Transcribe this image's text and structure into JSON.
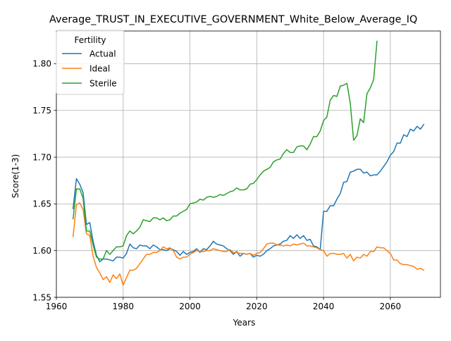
{
  "chart_data": {
    "type": "line",
    "title": "Average_TRUST_IN_EXECUTIVE_GOVERNMENT_White_Below_Average_IQ",
    "xlabel": "Years",
    "ylabel": "Score(1-3)",
    "xlim": [
      1960,
      2075
    ],
    "ylim": [
      1.55,
      1.835
    ],
    "xticks": [
      1960,
      1980,
      2000,
      2020,
      2040,
      2060
    ],
    "yticks": [
      1.55,
      1.6,
      1.65,
      1.7,
      1.75,
      1.8
    ],
    "xtick_labels": [
      "1960",
      "1980",
      "2000",
      "2020",
      "2040",
      "2060"
    ],
    "ytick_labels": [
      "1.55",
      "1.60",
      "1.65",
      "1.70",
      "1.75",
      "1.80"
    ],
    "grid": true,
    "legend": {
      "title": "Fertility",
      "placement": "top-left"
    },
    "series": [
      {
        "name": "Actual",
        "color": "#1f77b4",
        "points": [
          [
            1965,
            1.645
          ],
          [
            1966,
            1.677
          ],
          [
            1967,
            1.671
          ],
          [
            1968,
            1.662
          ],
          [
            1969,
            1.628
          ],
          [
            1970,
            1.63
          ],
          [
            1971,
            1.61
          ],
          [
            1972,
            1.595
          ],
          [
            1973,
            1.588
          ],
          [
            1974,
            1.591
          ],
          [
            1975,
            1.591
          ],
          [
            1976,
            1.59
          ],
          [
            1977,
            1.589
          ],
          [
            1978,
            1.593
          ],
          [
            1979,
            1.593
          ],
          [
            1980,
            1.592
          ],
          [
            1981,
            1.597
          ],
          [
            1982,
            1.607
          ],
          [
            1983,
            1.603
          ],
          [
            1984,
            1.602
          ],
          [
            1985,
            1.606
          ],
          [
            1986,
            1.605
          ],
          [
            1987,
            1.605
          ],
          [
            1988,
            1.602
          ],
          [
            1989,
            1.606
          ],
          [
            1990,
            1.604
          ],
          [
            1991,
            1.601
          ],
          [
            1992,
            1.601
          ],
          [
            1993,
            1.6
          ],
          [
            1994,
            1.602
          ],
          [
            1995,
            1.601
          ],
          [
            1996,
            1.599
          ],
          [
            1997,
            1.595
          ],
          [
            1998,
            1.599
          ],
          [
            1999,
            1.596
          ],
          [
            2000,
            1.598
          ],
          [
            2001,
            1.599
          ],
          [
            2002,
            1.602
          ],
          [
            2003,
            1.598
          ],
          [
            2004,
            1.602
          ],
          [
            2005,
            1.601
          ],
          [
            2006,
            1.605
          ],
          [
            2007,
            1.61
          ],
          [
            2008,
            1.607
          ],
          [
            2009,
            1.606
          ],
          [
            2010,
            1.605
          ],
          [
            2011,
            1.602
          ],
          [
            2012,
            1.6
          ],
          [
            2013,
            1.596
          ],
          [
            2014,
            1.599
          ],
          [
            2015,
            1.594
          ],
          [
            2016,
            1.597
          ],
          [
            2017,
            1.596
          ],
          [
            2018,
            1.597
          ],
          [
            2019,
            1.593
          ],
          [
            2020,
            1.595
          ],
          [
            2021,
            1.594
          ],
          [
            2022,
            1.596
          ],
          [
            2023,
            1.6
          ],
          [
            2024,
            1.602
          ],
          [
            2025,
            1.605
          ],
          [
            2026,
            1.606
          ],
          [
            2027,
            1.607
          ],
          [
            2028,
            1.61
          ],
          [
            2029,
            1.611
          ],
          [
            2030,
            1.616
          ],
          [
            2031,
            1.613
          ],
          [
            2032,
            1.617
          ],
          [
            2033,
            1.613
          ],
          [
            2034,
            1.616
          ],
          [
            2035,
            1.611
          ],
          [
            2036,
            1.612
          ],
          [
            2037,
            1.605
          ],
          [
            2038,
            1.604
          ],
          [
            2039,
            1.601
          ],
          [
            2040,
            1.642
          ],
          [
            2041,
            1.642
          ],
          [
            2042,
            1.648
          ],
          [
            2043,
            1.648
          ],
          [
            2044,
            1.655
          ],
          [
            2045,
            1.661
          ],
          [
            2046,
            1.673
          ],
          [
            2047,
            1.674
          ],
          [
            2048,
            1.684
          ],
          [
            2049,
            1.685
          ],
          [
            2050,
            1.687
          ],
          [
            2051,
            1.687
          ],
          [
            2052,
            1.683
          ],
          [
            2053,
            1.684
          ],
          [
            2054,
            1.68
          ],
          [
            2055,
            1.681
          ],
          [
            2056,
            1.681
          ],
          [
            2057,
            1.685
          ],
          [
            2058,
            1.69
          ],
          [
            2059,
            1.695
          ],
          [
            2060,
            1.702
          ],
          [
            2061,
            1.706
          ],
          [
            2062,
            1.715
          ],
          [
            2063,
            1.715
          ],
          [
            2064,
            1.724
          ],
          [
            2065,
            1.722
          ],
          [
            2066,
            1.73
          ],
          [
            2067,
            1.728
          ],
          [
            2068,
            1.733
          ],
          [
            2069,
            1.73
          ],
          [
            2070,
            1.735
          ]
        ]
      },
      {
        "name": "Ideal",
        "color": "#ff7f0e",
        "points": [
          [
            1965,
            1.615
          ],
          [
            1966,
            1.649
          ],
          [
            1967,
            1.651
          ],
          [
            1968,
            1.644
          ],
          [
            1969,
            1.618
          ],
          [
            1970,
            1.616
          ],
          [
            1971,
            1.594
          ],
          [
            1972,
            1.582
          ],
          [
            1973,
            1.576
          ],
          [
            1974,
            1.569
          ],
          [
            1975,
            1.572
          ],
          [
            1976,
            1.566
          ],
          [
            1977,
            1.574
          ],
          [
            1978,
            1.57
          ],
          [
            1979,
            1.575
          ],
          [
            1980,
            1.563
          ],
          [
            1981,
            1.571
          ],
          [
            1982,
            1.579
          ],
          [
            1983,
            1.579
          ],
          [
            1984,
            1.581
          ],
          [
            1985,
            1.586
          ],
          [
            1986,
            1.591
          ],
          [
            1987,
            1.596
          ],
          [
            1988,
            1.596
          ],
          [
            1989,
            1.598
          ],
          [
            1990,
            1.598
          ],
          [
            1991,
            1.6
          ],
          [
            1992,
            1.604
          ],
          [
            1993,
            1.602
          ],
          [
            1994,
            1.603
          ],
          [
            1995,
            1.6
          ],
          [
            1996,
            1.593
          ],
          [
            1997,
            1.591
          ],
          [
            1998,
            1.593
          ],
          [
            1999,
            1.593
          ],
          [
            2000,
            1.596
          ],
          [
            2001,
            1.598
          ],
          [
            2002,
            1.6
          ],
          [
            2003,
            1.599
          ],
          [
            2004,
            1.599
          ],
          [
            2005,
            1.6
          ],
          [
            2006,
            1.6
          ],
          [
            2007,
            1.602
          ],
          [
            2008,
            1.601
          ],
          [
            2009,
            1.6
          ],
          [
            2010,
            1.599
          ],
          [
            2011,
            1.599
          ],
          [
            2012,
            1.601
          ],
          [
            2013,
            1.598
          ],
          [
            2014,
            1.598
          ],
          [
            2015,
            1.597
          ],
          [
            2016,
            1.597
          ],
          [
            2017,
            1.596
          ],
          [
            2018,
            1.597
          ],
          [
            2019,
            1.595
          ],
          [
            2020,
            1.597
          ],
          [
            2021,
            1.598
          ],
          [
            2022,
            1.602
          ],
          [
            2023,
            1.607
          ],
          [
            2024,
            1.608
          ],
          [
            2025,
            1.608
          ],
          [
            2026,
            1.606
          ],
          [
            2027,
            1.606
          ],
          [
            2028,
            1.605
          ],
          [
            2029,
            1.606
          ],
          [
            2030,
            1.605
          ],
          [
            2031,
            1.607
          ],
          [
            2032,
            1.606
          ],
          [
            2033,
            1.607
          ],
          [
            2034,
            1.608
          ],
          [
            2035,
            1.605
          ],
          [
            2036,
            1.605
          ],
          [
            2037,
            1.604
          ],
          [
            2038,
            1.603
          ],
          [
            2039,
            1.601
          ],
          [
            2040,
            1.6
          ],
          [
            2041,
            1.594
          ],
          [
            2042,
            1.597
          ],
          [
            2043,
            1.597
          ],
          [
            2044,
            1.596
          ],
          [
            2045,
            1.596
          ],
          [
            2046,
            1.597
          ],
          [
            2047,
            1.592
          ],
          [
            2048,
            1.596
          ],
          [
            2049,
            1.589
          ],
          [
            2050,
            1.593
          ],
          [
            2051,
            1.592
          ],
          [
            2052,
            1.596
          ],
          [
            2053,
            1.594
          ],
          [
            2054,
            1.599
          ],
          [
            2055,
            1.599
          ],
          [
            2056,
            1.604
          ],
          [
            2057,
            1.603
          ],
          [
            2058,
            1.603
          ],
          [
            2059,
            1.6
          ],
          [
            2060,
            1.597
          ],
          [
            2061,
            1.59
          ],
          [
            2062,
            1.59
          ],
          [
            2063,
            1.586
          ],
          [
            2064,
            1.585
          ],
          [
            2065,
            1.585
          ],
          [
            2066,
            1.584
          ],
          [
            2067,
            1.583
          ],
          [
            2068,
            1.58
          ],
          [
            2069,
            1.581
          ],
          [
            2070,
            1.579
          ]
        ]
      },
      {
        "name": "Sterile",
        "color": "#2ca02c",
        "points": [
          [
            1965,
            1.634
          ],
          [
            1966,
            1.666
          ],
          [
            1967,
            1.666
          ],
          [
            1968,
            1.656
          ],
          [
            1969,
            1.621
          ],
          [
            1970,
            1.621
          ],
          [
            1971,
            1.606
          ],
          [
            1972,
            1.593
          ],
          [
            1973,
            1.591
          ],
          [
            1974,
            1.591
          ],
          [
            1975,
            1.6
          ],
          [
            1976,
            1.596
          ],
          [
            1977,
            1.6
          ],
          [
            1978,
            1.604
          ],
          [
            1979,
            1.604
          ],
          [
            1980,
            1.605
          ],
          [
            1981,
            1.616
          ],
          [
            1982,
            1.621
          ],
          [
            1983,
            1.618
          ],
          [
            1984,
            1.621
          ],
          [
            1985,
            1.625
          ],
          [
            1986,
            1.633
          ],
          [
            1987,
            1.632
          ],
          [
            1988,
            1.631
          ],
          [
            1989,
            1.635
          ],
          [
            1990,
            1.635
          ],
          [
            1991,
            1.633
          ],
          [
            1992,
            1.635
          ],
          [
            1993,
            1.632
          ],
          [
            1994,
            1.633
          ],
          [
            1995,
            1.637
          ],
          [
            1996,
            1.637
          ],
          [
            1997,
            1.64
          ],
          [
            1998,
            1.642
          ],
          [
            1999,
            1.644
          ],
          [
            2000,
            1.65
          ],
          [
            2001,
            1.651
          ],
          [
            2002,
            1.652
          ],
          [
            2003,
            1.655
          ],
          [
            2004,
            1.654
          ],
          [
            2005,
            1.657
          ],
          [
            2006,
            1.658
          ],
          [
            2007,
            1.657
          ],
          [
            2008,
            1.658
          ],
          [
            2009,
            1.66
          ],
          [
            2010,
            1.659
          ],
          [
            2011,
            1.661
          ],
          [
            2012,
            1.663
          ],
          [
            2013,
            1.664
          ],
          [
            2014,
            1.667
          ],
          [
            2015,
            1.665
          ],
          [
            2016,
            1.665
          ],
          [
            2017,
            1.666
          ],
          [
            2018,
            1.671
          ],
          [
            2019,
            1.672
          ],
          [
            2020,
            1.676
          ],
          [
            2021,
            1.681
          ],
          [
            2022,
            1.685
          ],
          [
            2023,
            1.687
          ],
          [
            2024,
            1.689
          ],
          [
            2025,
            1.695
          ],
          [
            2026,
            1.697
          ],
          [
            2027,
            1.698
          ],
          [
            2028,
            1.704
          ],
          [
            2029,
            1.708
          ],
          [
            2030,
            1.705
          ],
          [
            2031,
            1.705
          ],
          [
            2032,
            1.711
          ],
          [
            2033,
            1.712
          ],
          [
            2034,
            1.712
          ],
          [
            2035,
            1.708
          ],
          [
            2036,
            1.714
          ],
          [
            2037,
            1.722
          ],
          [
            2038,
            1.722
          ],
          [
            2039,
            1.728
          ],
          [
            2040,
            1.739
          ],
          [
            2041,
            1.743
          ],
          [
            2042,
            1.761
          ],
          [
            2043,
            1.766
          ],
          [
            2044,
            1.765
          ],
          [
            2045,
            1.776
          ],
          [
            2046,
            1.777
          ],
          [
            2047,
            1.779
          ],
          [
            2048,
            1.758
          ],
          [
            2049,
            1.718
          ],
          [
            2050,
            1.723
          ],
          [
            2051,
            1.741
          ],
          [
            2052,
            1.737
          ],
          [
            2053,
            1.768
          ],
          [
            2054,
            1.774
          ],
          [
            2055,
            1.783
          ],
          [
            2056,
            1.824
          ]
        ]
      }
    ]
  }
}
